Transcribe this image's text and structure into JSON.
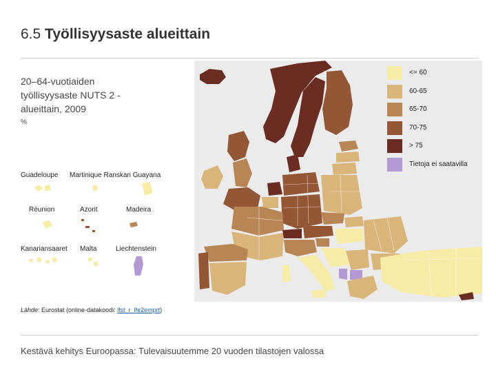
{
  "title": {
    "number": "6.5",
    "text": "Työllisyysaste alueittain"
  },
  "subtitle": "20–64-vuotiaiden työllisyysaste NUTS 2 -alueittain, 2009",
  "unit": "%",
  "colors": {
    "le60": "#f7eca6",
    "c60_65": "#d9b57a",
    "c65_70": "#b88654",
    "c70_75": "#945735",
    "gt75": "#6b2c22",
    "no_data": "#b49ad2",
    "sea": "#ebebeb"
  },
  "legend": [
    {
      "label": "<= 60",
      "color": "#f7eca6",
      "icon": "color-swatch"
    },
    {
      "label": "60-65",
      "color": "#d9b57a",
      "icon": "color-swatch"
    },
    {
      "label": "65-70",
      "color": "#b88654",
      "icon": "color-swatch"
    },
    {
      "label": "70-75",
      "color": "#945735",
      "icon": "color-swatch"
    },
    {
      "label": "> 75",
      "color": "#6b2c22",
      "icon": "color-swatch"
    },
    {
      "label": "Tietoja ei saatavilla",
      "color": "#b49ad2",
      "icon": "color-swatch"
    }
  ],
  "insets": {
    "guadeloupe": "Guadeloupe",
    "martinique_guayana": "Martinique Ranskan Guayana",
    "reunion": "Réunion",
    "azores": "Azorit",
    "madeira": "Madeira",
    "canaries": "Kanariansaaret",
    "malta": "Malta",
    "liechtenstein": "Liechtenstein"
  },
  "source": {
    "label": "Lähde",
    "text": ": Eurostat (online-datakoodi: ",
    "code": "lfst_r_lfe2emprt",
    "close": ")"
  },
  "footer": "Kestävä kehitys Euroopassa: Tulevaisuutemme 20 vuoden tilastojen valossa"
}
